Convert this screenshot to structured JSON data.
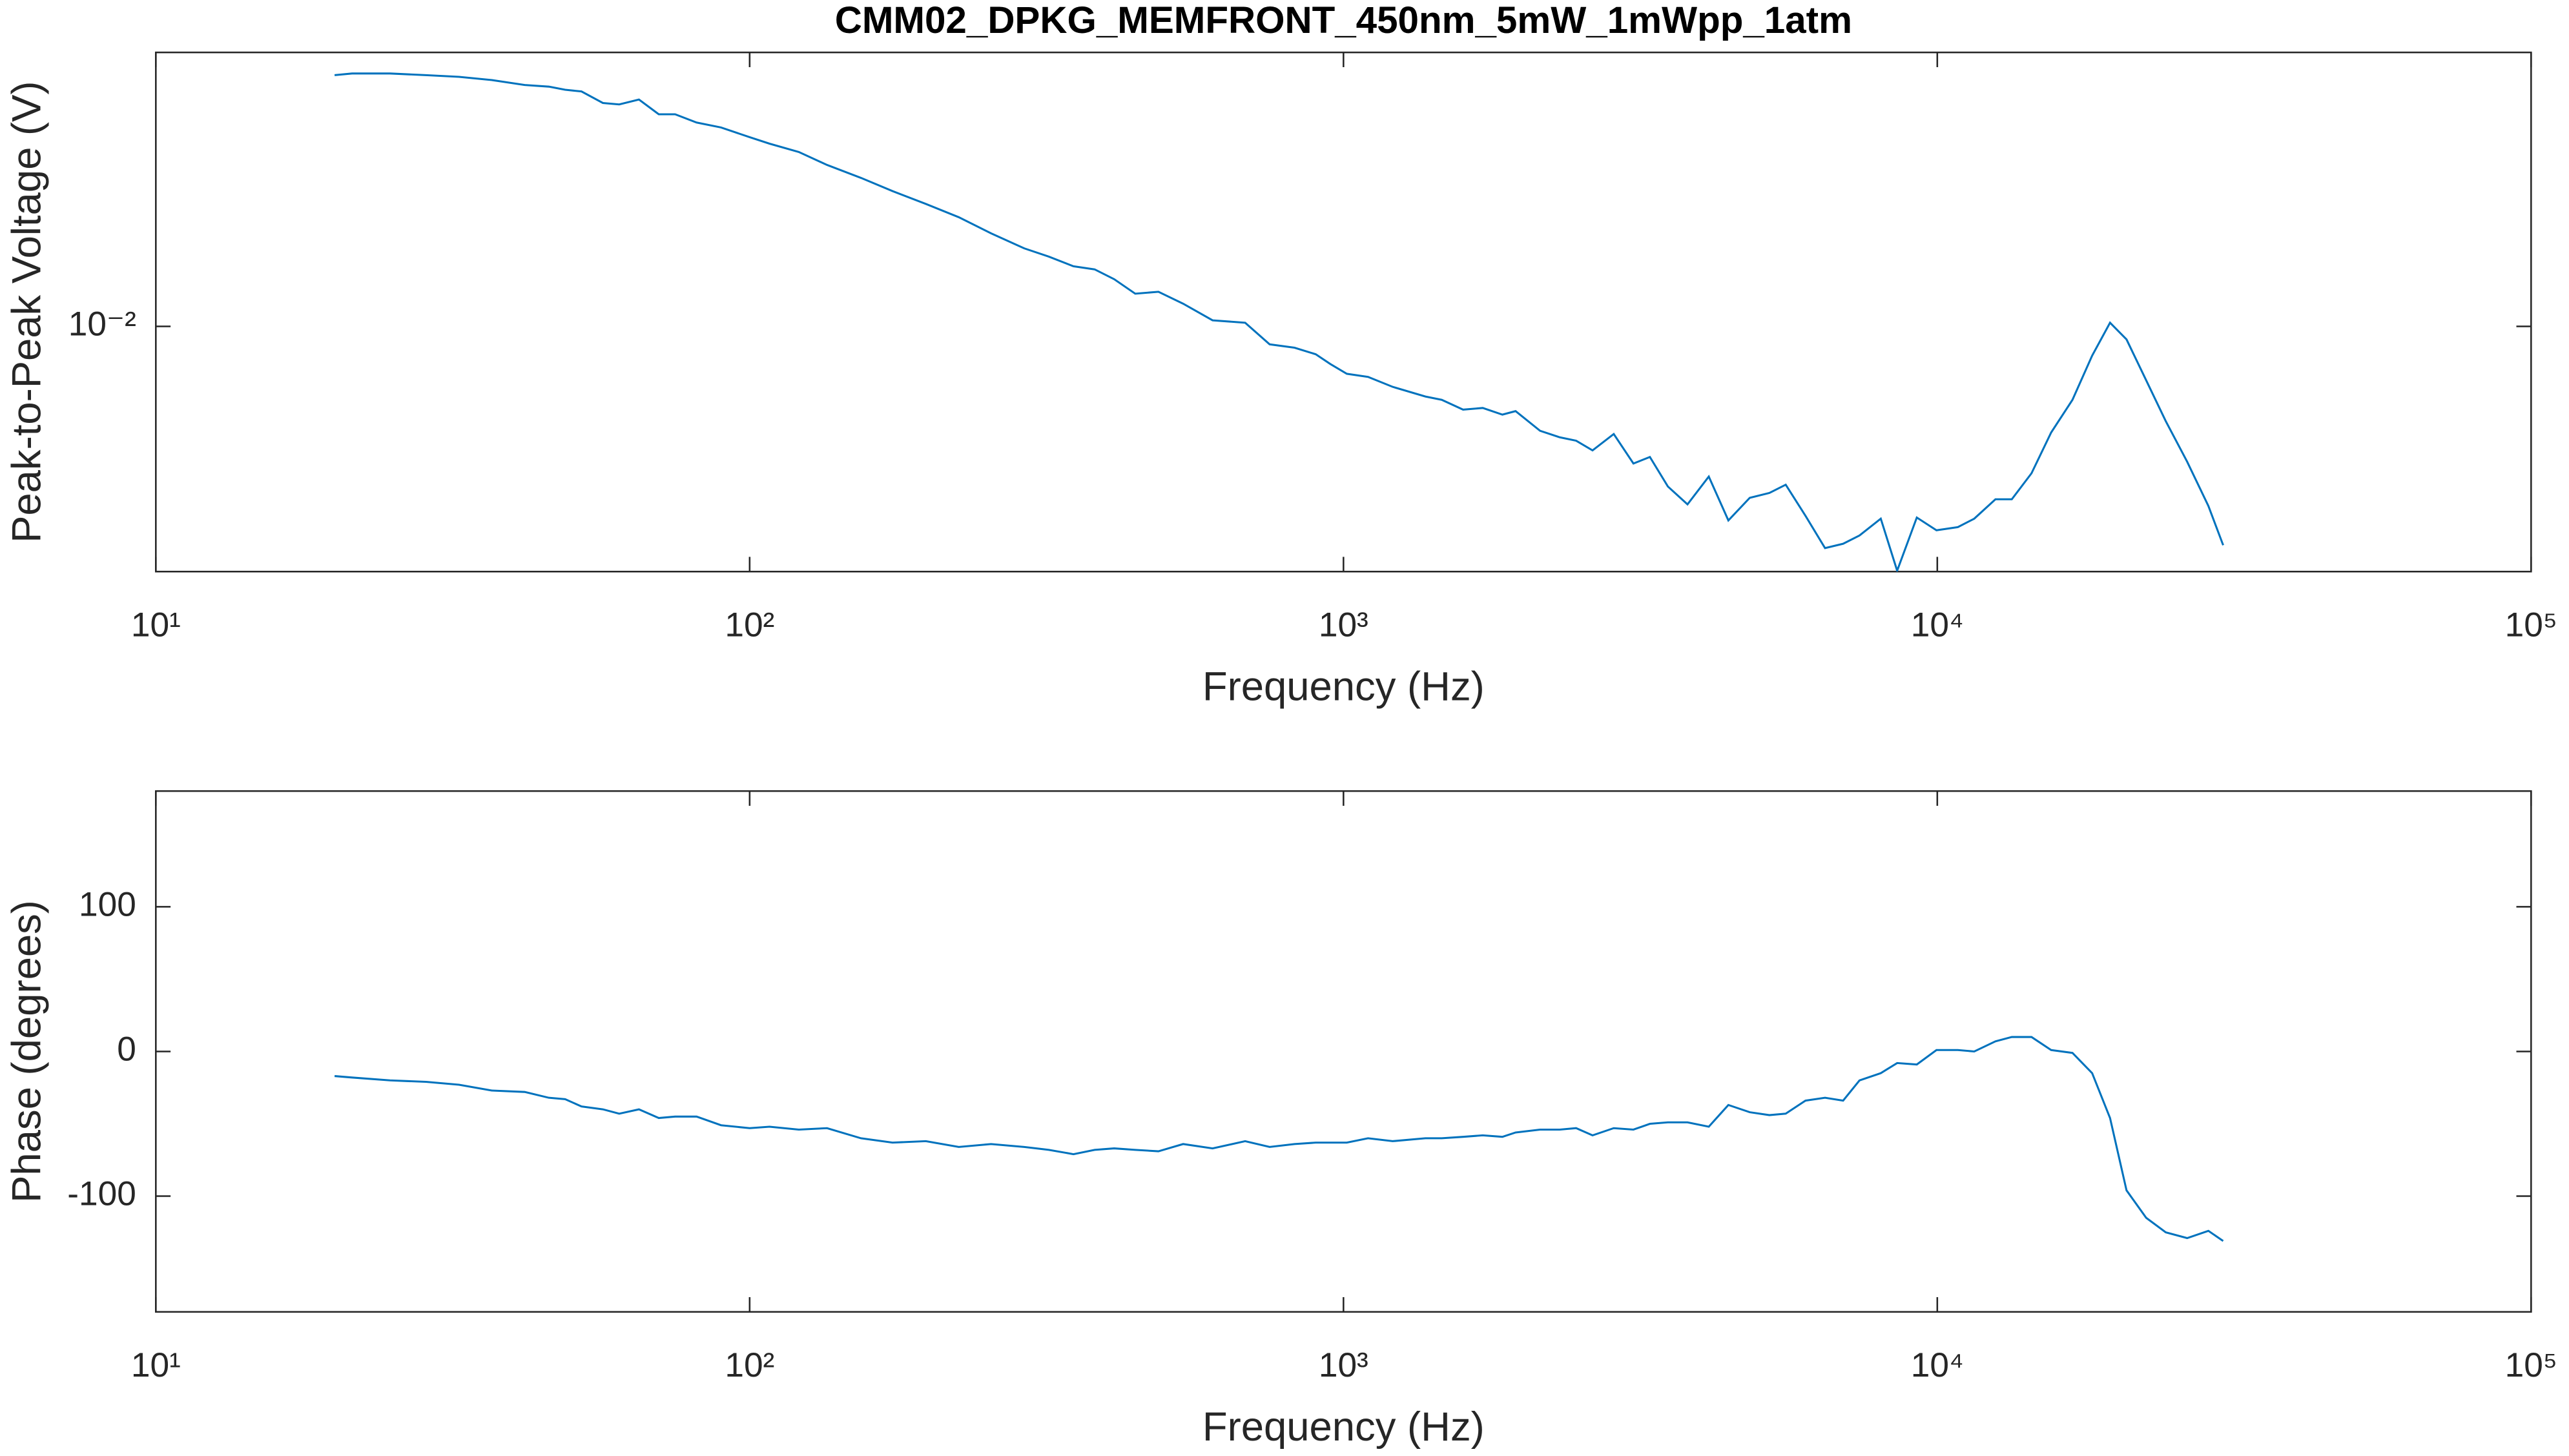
{
  "chart_data": [
    {
      "type": "line",
      "title": "CMM02_DPKG_MEMFRONT_450nm_5mW_1mWpp_1atm",
      "xlabel": "Frequency (Hz)",
      "ylabel": "Peak-to-Peak Voltage (V)",
      "xlog": true,
      "ylog": true,
      "grid": false,
      "xlim": [
        10,
        100000
      ],
      "xticks": [
        {
          "value": 10,
          "label": "10¹"
        },
        {
          "value": 100,
          "label": "10²"
        },
        {
          "value": 1000,
          "label": "10³"
        },
        {
          "value": 10000,
          "label": "10⁴"
        },
        {
          "value": 100000,
          "label": "10⁵"
        }
      ],
      "ylim": [
        0.0014,
        0.09
      ],
      "yticks": [
        {
          "value": 0.01,
          "label": "10⁻²"
        }
      ],
      "x": [
        20,
        21.4,
        24.8,
        28.5,
        32.4,
        36.8,
        41.8,
        45.9,
        48.9,
        52.1,
        56.6,
        60.3,
        65.1,
        70.3,
        74.9,
        81.4,
        89.5,
        100,
        108,
        121,
        135,
        154,
        174,
        198,
        225,
        255,
        290,
        319,
        351,
        381,
        411,
        446,
        488,
        537,
        602,
        683,
        751,
        827,
        898,
        950,
        1013,
        1100,
        1210,
        1374,
        1464,
        1590,
        1716,
        1852,
        1949,
        2143,
        2313,
        2465,
        2627,
        2852,
        3078,
        3281,
        3518,
        3796,
        4123,
        4448,
        4833,
        5215,
        5556,
        5998,
        6471,
        6941,
        7396,
        8032,
        8559,
        9237,
        9968,
        10830,
        11540,
        12530,
        13350,
        14410,
        15550,
        16890,
        18230,
        19540,
        20830,
        22480,
        24250,
        26350,
        28610,
        30300
      ],
      "series": [
        {
          "name": "Voltage",
          "color": "#0072bd",
          "values": [
            0.075,
            0.076,
            0.076,
            0.075,
            0.074,
            0.0721,
            0.0693,
            0.0684,
            0.0667,
            0.0658,
            0.06,
            0.0593,
            0.0617,
            0.0548,
            0.0548,
            0.0513,
            0.0493,
            0.0456,
            0.0433,
            0.0405,
            0.0365,
            0.0329,
            0.0296,
            0.0267,
            0.024,
            0.0211,
            0.0187,
            0.0175,
            0.0162,
            0.0158,
            0.0146,
            0.013,
            0.0132,
            0.012,
            0.0105,
            0.0103,
            0.00866,
            0.00843,
            0.008,
            0.0074,
            0.00684,
            0.00667,
            0.00616,
            0.0057,
            0.00555,
            0.00513,
            0.0052,
            0.00493,
            0.00507,
            0.00433,
            0.00411,
            0.004,
            0.0037,
            0.00422,
            0.00333,
            0.00351,
            0.00277,
            0.0024,
            0.003,
            0.00211,
            0.00253,
            0.00263,
            0.00281,
            0.00219,
            0.00169,
            0.00175,
            0.00187,
            0.00214,
            0.00141,
            0.00216,
            0.00195,
            0.002,
            0.00214,
            0.0025,
            0.0025,
            0.00308,
            0.00427,
            0.00555,
            0.00791,
            0.0103,
            0.00901,
            0.00649,
            0.00468,
            0.00338,
            0.00237,
            0.00173
          ]
        }
      ]
    },
    {
      "type": "line",
      "xlabel": "Frequency (Hz)",
      "ylabel": "Phase (degrees)",
      "xlog": true,
      "ylog": false,
      "grid": false,
      "xlim": [
        10,
        100000
      ],
      "xticks": [
        {
          "value": 10,
          "label": "10¹"
        },
        {
          "value": 100,
          "label": "10²"
        },
        {
          "value": 1000,
          "label": "10³"
        },
        {
          "value": 10000,
          "label": "10⁴"
        },
        {
          "value": 100000,
          "label": "10⁵"
        }
      ],
      "ylim": [
        -180,
        180
      ],
      "yticks": [
        -100,
        0,
        100
      ],
      "x": [
        20,
        21.4,
        24.8,
        28.5,
        32.4,
        36.8,
        41.8,
        45.9,
        48.9,
        52.1,
        56.6,
        60.3,
        65.1,
        70.3,
        74.9,
        81.4,
        89.5,
        100,
        108,
        121,
        135,
        154,
        174,
        198,
        225,
        255,
        290,
        319,
        351,
        381,
        411,
        446,
        488,
        537,
        602,
        683,
        751,
        827,
        898,
        950,
        1013,
        1100,
        1210,
        1374,
        1464,
        1590,
        1716,
        1852,
        1949,
        2143,
        2313,
        2465,
        2627,
        2852,
        3078,
        3281,
        3518,
        3796,
        4123,
        4448,
        4833,
        5215,
        5556,
        5998,
        6471,
        6941,
        7396,
        8032,
        8559,
        9237,
        9968,
        10830,
        11540,
        12530,
        13350,
        14410,
        15550,
        16890,
        18230,
        19540,
        20830,
        22480,
        24250,
        26350,
        28610,
        30300
      ],
      "series": [
        {
          "name": "Phase",
          "color": "#0072bd",
          "values": [
            -17,
            -18,
            -20,
            -21,
            -23,
            -27,
            -28,
            -32,
            -33,
            -38,
            -40,
            -43,
            -40,
            -46,
            -45,
            -45,
            -51,
            -53,
            -52,
            -54,
            -53,
            -60,
            -63,
            -62,
            -66,
            -64,
            -66,
            -68,
            -71,
            -68,
            -67,
            -68,
            -69,
            -64,
            -67,
            -62,
            -66,
            -64,
            -63,
            -63,
            -63,
            -60,
            -62,
            -60,
            -60,
            -59,
            -58,
            -59,
            -56,
            -54,
            -54,
            -53,
            -58,
            -53,
            -54,
            -50,
            -49,
            -49,
            -52,
            -37,
            -42,
            -44,
            -43,
            -34,
            -32,
            -34,
            -20,
            -15,
            -8,
            -9,
            1,
            1,
            0,
            7,
            10,
            10,
            1,
            -1,
            -15,
            -46,
            -96,
            -115,
            -125,
            -129,
            -124,
            -131
          ]
        }
      ]
    }
  ]
}
